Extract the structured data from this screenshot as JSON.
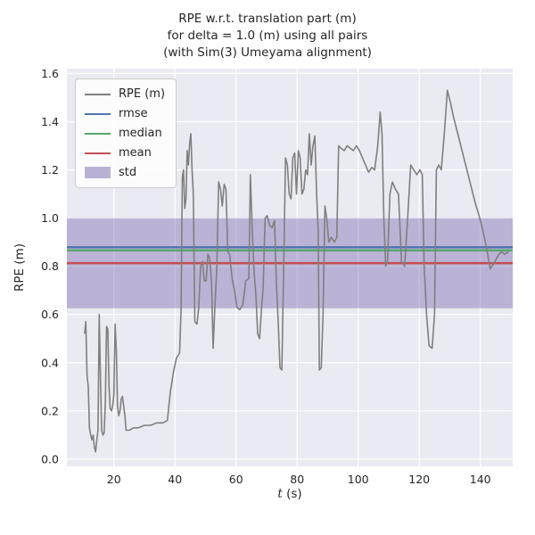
{
  "figure": {
    "kind": "matplotlib-figure",
    "background": "#ffffff"
  },
  "title_lines": {
    "line1": "RPE w.r.t. translation part (m)",
    "line2": "for delta = 1.0 (m) using all pairs",
    "line3": "(with Sim(3) Umeyama alignment)"
  },
  "axis": {
    "ylabel": "RPE (m)",
    "xlabel_var": "t",
    "xlabel_unit": " (s)"
  },
  "legend": {
    "entries": [
      {
        "label": "RPE (m)",
        "color_key": "rpe",
        "type": "line"
      },
      {
        "label": "rmse",
        "color_key": "rmse",
        "type": "line"
      },
      {
        "label": "median",
        "color_key": "median",
        "type": "line"
      },
      {
        "label": "mean",
        "color_key": "mean",
        "type": "line"
      },
      {
        "label": "std",
        "color_key": "std",
        "type": "patch"
      }
    ]
  },
  "chart_data": {
    "type": "line",
    "title": "RPE w.r.t. translation part (m) for delta = 1.0 (m) using all pairs (with Sim(3) Umeyama alignment)",
    "xlabel": "t (s)",
    "ylabel": "RPE (m)",
    "xlim": [
      4.6,
      150.6
    ],
    "ylim": [
      -0.03,
      1.62
    ],
    "xticks": [
      20,
      40,
      60,
      80,
      100,
      120,
      140
    ],
    "yticks": [
      0.0,
      0.2,
      0.4,
      0.6,
      0.8,
      1.0,
      1.2,
      1.4,
      1.6
    ],
    "grid": true,
    "legend_position": "upper-left",
    "stats": {
      "rmse": 0.879,
      "median": 0.866,
      "mean": 0.813,
      "std": 0.187
    },
    "colors": {
      "axes_bg": "#eaeaf2",
      "grid": "#ffffff",
      "text": "#262626",
      "rpe": "#7f7f7f",
      "rmse": "#4c72b0",
      "median": "#55a868",
      "mean": "#c44e52",
      "std": "#8172b2",
      "std_fill_opacity": 0.45
    },
    "series": [
      {
        "name": "RPE (m)",
        "points": [
          [
            10.4,
            0.52
          ],
          [
            10.8,
            0.57
          ],
          [
            11.2,
            0.35
          ],
          [
            11.6,
            0.3
          ],
          [
            12.0,
            0.13
          ],
          [
            12.4,
            0.1
          ],
          [
            12.8,
            0.08
          ],
          [
            13.2,
            0.1
          ],
          [
            13.6,
            0.05
          ],
          [
            14.0,
            0.03
          ],
          [
            14.4,
            0.08
          ],
          [
            14.8,
            0.12
          ],
          [
            15.2,
            0.6
          ],
          [
            15.6,
            0.33
          ],
          [
            16.0,
            0.12
          ],
          [
            16.4,
            0.1
          ],
          [
            16.8,
            0.11
          ],
          [
            17.2,
            0.24
          ],
          [
            17.6,
            0.55
          ],
          [
            18.0,
            0.54
          ],
          [
            18.4,
            0.3
          ],
          [
            18.8,
            0.21
          ],
          [
            19.2,
            0.2
          ],
          [
            19.6,
            0.22
          ],
          [
            20.0,
            0.27
          ],
          [
            20.4,
            0.56
          ],
          [
            20.8,
            0.45
          ],
          [
            21.2,
            0.22
          ],
          [
            21.6,
            0.18
          ],
          [
            22.0,
            0.2
          ],
          [
            22.4,
            0.25
          ],
          [
            22.8,
            0.26
          ],
          [
            23.2,
            0.22
          ],
          [
            23.6,
            0.18
          ],
          [
            24.0,
            0.12
          ],
          [
            25.0,
            0.12
          ],
          [
            26.5,
            0.13
          ],
          [
            28.0,
            0.13
          ],
          [
            30.0,
            0.14
          ],
          [
            32.0,
            0.14
          ],
          [
            34.0,
            0.15
          ],
          [
            36.0,
            0.15
          ],
          [
            37.5,
            0.16
          ],
          [
            38.5,
            0.28
          ],
          [
            39.5,
            0.36
          ],
          [
            40.5,
            0.42
          ],
          [
            41.5,
            0.44
          ],
          [
            42.0,
            0.62
          ],
          [
            42.4,
            1.17
          ],
          [
            42.8,
            1.2
          ],
          [
            43.2,
            1.04
          ],
          [
            43.6,
            1.08
          ],
          [
            44.0,
            1.28
          ],
          [
            44.4,
            1.22
          ],
          [
            44.8,
            1.31
          ],
          [
            45.2,
            1.35
          ],
          [
            45.6,
            1.2
          ],
          [
            46.0,
            1.1
          ],
          [
            46.5,
            0.57
          ],
          [
            47.2,
            0.56
          ],
          [
            47.8,
            0.63
          ],
          [
            48.4,
            0.8
          ],
          [
            49.0,
            0.82
          ],
          [
            49.6,
            0.74
          ],
          [
            50.2,
            0.74
          ],
          [
            50.8,
            0.85
          ],
          [
            51.4,
            0.83
          ],
          [
            52.0,
            0.73
          ],
          [
            52.5,
            0.46
          ],
          [
            53.1,
            0.64
          ],
          [
            53.7,
            0.8
          ],
          [
            54.3,
            1.15
          ],
          [
            54.9,
            1.12
          ],
          [
            55.5,
            1.05
          ],
          [
            56.1,
            1.14
          ],
          [
            56.7,
            1.12
          ],
          [
            57.3,
            0.86
          ],
          [
            57.9,
            0.85
          ],
          [
            58.7,
            0.75
          ],
          [
            59.5,
            0.7
          ],
          [
            60.3,
            0.63
          ],
          [
            61.2,
            0.62
          ],
          [
            62.2,
            0.64
          ],
          [
            63.2,
            0.74
          ],
          [
            64.2,
            0.75
          ],
          [
            64.7,
            1.18
          ],
          [
            65.3,
            0.95
          ],
          [
            65.9,
            0.78
          ],
          [
            66.5,
            0.68
          ],
          [
            67.1,
            0.52
          ],
          [
            67.7,
            0.5
          ],
          [
            68.3,
            0.62
          ],
          [
            68.9,
            0.72
          ],
          [
            69.5,
            1.0
          ],
          [
            70.2,
            1.01
          ],
          [
            71.0,
            0.97
          ],
          [
            71.8,
            0.96
          ],
          [
            72.6,
            0.99
          ],
          [
            73.2,
            0.74
          ],
          [
            73.8,
            0.57
          ],
          [
            74.4,
            0.38
          ],
          [
            75.0,
            0.37
          ],
          [
            75.6,
            0.8
          ],
          [
            76.2,
            1.25
          ],
          [
            76.8,
            1.22
          ],
          [
            77.4,
            1.1
          ],
          [
            78.0,
            1.08
          ],
          [
            78.6,
            1.25
          ],
          [
            79.2,
            1.27
          ],
          [
            79.8,
            1.1
          ],
          [
            80.4,
            1.28
          ],
          [
            81.0,
            1.25
          ],
          [
            81.6,
            1.1
          ],
          [
            82.2,
            1.12
          ],
          [
            82.8,
            1.2
          ],
          [
            83.4,
            1.18
          ],
          [
            84.0,
            1.35
          ],
          [
            84.6,
            1.22
          ],
          [
            85.2,
            1.3
          ],
          [
            85.8,
            1.34
          ],
          [
            86.4,
            1.1
          ],
          [
            86.9,
            0.95
          ],
          [
            87.3,
            0.37
          ],
          [
            87.9,
            0.38
          ],
          [
            88.5,
            0.6
          ],
          [
            89.1,
            1.05
          ],
          [
            89.7,
            1.0
          ],
          [
            90.4,
            0.9
          ],
          [
            91.2,
            0.92
          ],
          [
            92.2,
            0.9
          ],
          [
            93.0,
            0.92
          ],
          [
            93.6,
            1.3
          ],
          [
            94.4,
            1.29
          ],
          [
            95.4,
            1.28
          ],
          [
            96.4,
            1.3
          ],
          [
            97.4,
            1.29
          ],
          [
            98.4,
            1.28
          ],
          [
            99.4,
            1.3
          ],
          [
            100.4,
            1.28
          ],
          [
            101.4,
            1.25
          ],
          [
            102.4,
            1.22
          ],
          [
            103.4,
            1.19
          ],
          [
            104.4,
            1.21
          ],
          [
            105.4,
            1.2
          ],
          [
            106.4,
            1.3
          ],
          [
            107.2,
            1.44
          ],
          [
            107.8,
            1.35
          ],
          [
            108.4,
            1.0
          ],
          [
            109.0,
            0.8
          ],
          [
            109.6,
            0.82
          ],
          [
            110.4,
            1.1
          ],
          [
            111.2,
            1.15
          ],
          [
            112.2,
            1.12
          ],
          [
            113.2,
            1.1
          ],
          [
            114.2,
            0.82
          ],
          [
            115.2,
            0.8
          ],
          [
            116.2,
            1.0
          ],
          [
            117.2,
            1.22
          ],
          [
            118.2,
            1.2
          ],
          [
            119.2,
            1.18
          ],
          [
            120.2,
            1.2
          ],
          [
            121.0,
            1.18
          ],
          [
            121.6,
            0.8
          ],
          [
            122.4,
            0.6
          ],
          [
            123.2,
            0.47
          ],
          [
            124.2,
            0.46
          ],
          [
            125.0,
            0.6
          ],
          [
            125.6,
            1.2
          ],
          [
            126.4,
            1.22
          ],
          [
            127.2,
            1.2
          ],
          [
            128.2,
            1.35
          ],
          [
            129.2,
            1.53
          ],
          [
            130.2,
            1.48
          ],
          [
            131.2,
            1.42
          ],
          [
            132.4,
            1.36
          ],
          [
            133.6,
            1.3
          ],
          [
            134.8,
            1.24
          ],
          [
            136.0,
            1.18
          ],
          [
            137.2,
            1.12
          ],
          [
            138.4,
            1.06
          ],
          [
            139.6,
            1.01
          ],
          [
            140.8,
            0.95
          ],
          [
            142.0,
            0.88
          ],
          [
            143.2,
            0.79
          ],
          [
            144.4,
            0.81
          ],
          [
            145.6,
            0.84
          ],
          [
            146.8,
            0.86
          ],
          [
            148.0,
            0.85
          ],
          [
            149.2,
            0.86
          ]
        ]
      }
    ]
  }
}
